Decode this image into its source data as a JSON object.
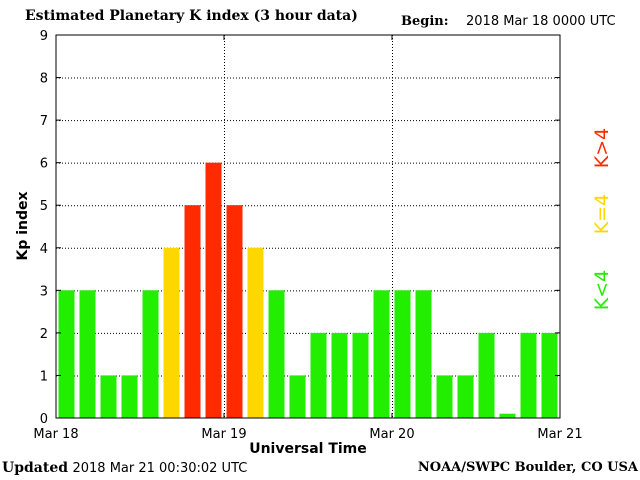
{
  "header": {
    "title": "Estimated Planetary K index (3 hour data)",
    "begin_label": "Begin:",
    "begin_value": "2018 Mar 18 0000 UTC"
  },
  "footer": {
    "updated_label": "Updated",
    "updated_value": "2018 Mar 21 00:30:02 UTC",
    "credit": "NOAA/SWPC Boulder, CO USA"
  },
  "colors": {
    "low": "#22ee00",
    "mid": "#ffd700",
    "high": "#ff2a00"
  },
  "chart_data": {
    "type": "bar",
    "title": "Estimated Planetary K index (3 hour data)",
    "xlabel": "Universal Time",
    "ylabel": "Kp index",
    "ylim": [
      0,
      9
    ],
    "yticks": [
      0,
      1,
      2,
      3,
      4,
      5,
      6,
      7,
      8,
      9
    ],
    "x_tick_labels": [
      "Mar 18",
      "Mar 19",
      "Mar 20",
      "Mar 21"
    ],
    "grid": true,
    "values": [
      3,
      3,
      1,
      1,
      3,
      4,
      5,
      6,
      5,
      4,
      3,
      1,
      2,
      2,
      2,
      3,
      3,
      3,
      1,
      1,
      2,
      0.1,
      2,
      2
    ],
    "legend": [
      {
        "label": "K<4",
        "color": "#22ee00"
      },
      {
        "label": "K=4",
        "color": "#ffd700"
      },
      {
        "label": "K>4",
        "color": "#ff2a00"
      }
    ],
    "legend_position": "right"
  }
}
